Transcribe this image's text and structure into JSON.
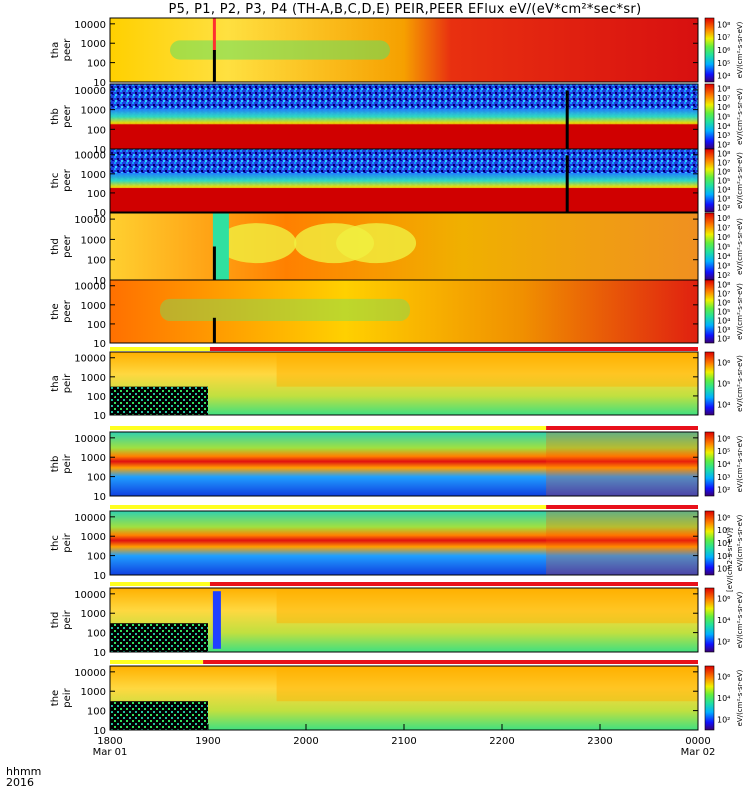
{
  "title": "P5, P1, P2, P3, P4 (TH-A,B,C,D,E) PEIR,PEER EFlux eV/(eV*cm²*sec*sr)",
  "corner": {
    "line1": "hhmm",
    "line2": "2016"
  },
  "colors": {
    "axis": "#000000",
    "flag_red": "#e8101a",
    "flag_yellow": "#ffff20"
  },
  "chart_data": {
    "type": "heatmap",
    "x_ticks": [
      {
        "label": "1800",
        "sub": "Mar 01"
      },
      {
        "label": "1900",
        "sub": ""
      },
      {
        "label": "2000",
        "sub": ""
      },
      {
        "label": "2100",
        "sub": ""
      },
      {
        "label": "2200",
        "sub": ""
      },
      {
        "label": "2300",
        "sub": ""
      },
      {
        "label": "0000",
        "sub": "Mar 02"
      }
    ],
    "x_range_hours": [
      18,
      24
    ],
    "y_scale": "log",
    "y_ticks": [
      "10",
      "100",
      "1000",
      "10000"
    ],
    "panels": [
      {
        "id": "tha-peer",
        "probe": "tha",
        "species": "peer",
        "colorbar": [
          "10⁴",
          "10⁵",
          "10⁶",
          "10⁷",
          "10⁸"
        ],
        "colorbar_label": "eV/(cm²-s-sr-eV)"
      },
      {
        "id": "thb-peer",
        "probe": "thb",
        "species": "peer",
        "colorbar": [
          "10²",
          "10³",
          "10⁴",
          "10⁵",
          "10⁶",
          "10⁷",
          "10⁸"
        ],
        "colorbar_label": "eV/(cm²-s-sr-eV)"
      },
      {
        "id": "thc-peer",
        "probe": "thc",
        "species": "peer",
        "colorbar": [
          "10²",
          "10³",
          "10⁴",
          "10⁵",
          "10⁶",
          "10⁷",
          "10⁸"
        ],
        "colorbar_label": "eV/(cm²-s-sr-eV)"
      },
      {
        "id": "thd-peer",
        "probe": "thd",
        "species": "peer",
        "colorbar": [
          "10²",
          "10³",
          "10⁴",
          "10⁵",
          "10⁶",
          "10⁷",
          "10⁸"
        ],
        "colorbar_label": "eV/(cm²-s-sr-eV)"
      },
      {
        "id": "the-peer",
        "probe": "the",
        "species": "peer",
        "colorbar": [
          "10²",
          "10³",
          "10⁴",
          "10⁵",
          "10⁶",
          "10⁷",
          "10⁸"
        ],
        "colorbar_label": "eV/(cm²-s-sr-eV)"
      },
      {
        "id": "tha-peir",
        "probe": "tha",
        "species": "peir",
        "colorbar": [
          "10⁴",
          "10⁵",
          "10⁶"
        ],
        "colorbar_label": "eV/(cm²-s-sr-eV)"
      },
      {
        "id": "thb-peir",
        "probe": "thb",
        "species": "peir",
        "colorbar": [
          "10²",
          "10³",
          "10⁴",
          "10⁵",
          "10⁶"
        ],
        "colorbar_label": "eV/(cm²-s-sr-eV)"
      },
      {
        "id": "thc-peir",
        "probe": "thc",
        "species": "peir",
        "colorbar": [
          "10²",
          "10³",
          "10⁴",
          "10⁵",
          "10⁶"
        ],
        "colorbar_label": "eV/(cm²-s-sr-eV)"
      },
      {
        "id": "thd-peir",
        "probe": "thd",
        "species": "peir",
        "colorbar": [
          "10²",
          "10⁴",
          "10⁶"
        ],
        "colorbar_label": "eV/(cm²-s-sr-eV)"
      },
      {
        "id": "the-peir",
        "probe": "the",
        "species": "peir",
        "colorbar": [
          "10²",
          "10⁴",
          "10⁶"
        ],
        "colorbar_label": "eV/(cm²-s-sr-eV)"
      }
    ],
    "colorbar_side_label": "[eV/(cm2-s-sr-eV)]",
    "grid": false
  }
}
